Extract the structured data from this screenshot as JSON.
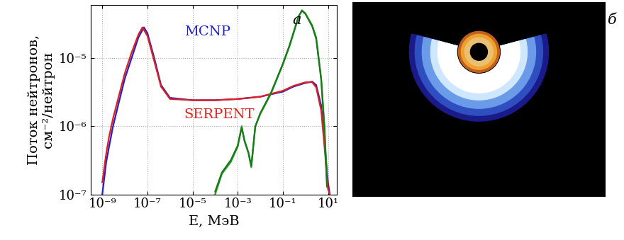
{
  "chart_data": {
    "type": "line",
    "panel_label": "а",
    "x_label": "E, МэВ",
    "y_label": "Поток нейтронов,\nсм⁻²/нейтрон",
    "log": true,
    "grid": true,
    "xlim": [
      3e-10,
      25
    ],
    "ylim": [
      1e-07,
      6e-05
    ],
    "xticks": [
      {
        "value": 1e-09,
        "label": "10⁻⁹"
      },
      {
        "value": 1e-07,
        "label": "10⁻⁷"
      },
      {
        "value": 1e-05,
        "label": "10⁻⁵"
      },
      {
        "value": 0.001,
        "label": "10⁻³"
      },
      {
        "value": 0.1,
        "label": "10⁻¹"
      },
      {
        "value": 10,
        "label": "10¹"
      }
    ],
    "yticks": [
      {
        "value": 1e-07,
        "label": "10⁻⁷"
      },
      {
        "value": 1e-06,
        "label": "10⁻⁶"
      },
      {
        "value": 1e-05,
        "label": "10⁻⁵"
      }
    ],
    "series": [
      {
        "name": "MCNP",
        "color": "#1f1fd0",
        "x": [
          1e-09,
          1.5e-09,
          2e-09,
          3e-09,
          5e-09,
          1e-08,
          2e-08,
          4e-08,
          7e-08,
          1e-07,
          2e-07,
          4e-07,
          1e-06,
          1e-05,
          0.0001,
          0.001,
          0.01,
          0.1,
          0.3,
          1,
          2,
          3,
          5,
          7,
          10,
          12
        ],
        "values": [
          1e-07,
          3e-07,
          5e-07,
          1e-06,
          2e-06,
          5e-06,
          1e-05,
          2e-05,
          2.8e-05,
          2.3e-05,
          1e-05,
          4e-06,
          2.6e-06,
          2.4e-06,
          2.4e-06,
          2.5e-06,
          2.7e-06,
          3.2e-06,
          3.8e-06,
          4.3e-06,
          4.5e-06,
          4e-06,
          2e-06,
          6e-07,
          1.5e-07,
          1e-07
        ]
      },
      {
        "name": "SERPENT",
        "color": "#e02020",
        "x": [
          1e-09,
          1.5e-09,
          2e-09,
          3e-09,
          5e-09,
          1e-08,
          2e-08,
          4e-08,
          6e-08,
          1e-07,
          2e-07,
          4e-07,
          1e-06,
          1e-05,
          0.0001,
          0.001,
          0.01,
          0.1,
          0.3,
          1,
          2,
          3,
          5,
          7,
          10,
          12
        ],
        "values": [
          1.5e-07,
          4e-07,
          7e-07,
          1.3e-06,
          2.5e-06,
          6e-06,
          1.2e-05,
          2.2e-05,
          2.8e-05,
          2.1e-05,
          9e-06,
          3.8e-06,
          2.5e-06,
          2.4e-06,
          2.4e-06,
          2.5e-06,
          2.7e-06,
          3.3e-06,
          3.9e-06,
          4.4e-06,
          4.4e-06,
          3.7e-06,
          1.7e-06,
          5e-07,
          1.2e-07,
          1e-07
        ]
      },
      {
        "color": "#2ca02c",
        "x": [
          0.0001,
          0.0002,
          0.0005,
          0.001,
          0.0015,
          0.002,
          0.003,
          0.004,
          0.006,
          0.01,
          0.03,
          0.1,
          0.2,
          0.5,
          0.7,
          1,
          2,
          3,
          5,
          7,
          9
        ],
        "values": [
          1e-07,
          2e-07,
          3e-07,
          5e-07,
          1e-06,
          6e-07,
          4e-07,
          2.5e-07,
          1e-06,
          1.5e-06,
          3e-06,
          8e-06,
          1.5e-05,
          4e-05,
          5e-05,
          4.5e-05,
          3e-05,
          2e-05,
          5e-06,
          1e-06,
          1.5e-07
        ]
      },
      {
        "color": "#1a7a1a",
        "x": [
          0.0001,
          0.0002,
          0.0005,
          0.001,
          0.0015,
          0.002,
          0.003,
          0.004,
          0.006,
          0.01,
          0.03,
          0.1,
          0.2,
          0.5,
          0.7,
          1,
          2,
          3,
          5,
          7,
          9
        ],
        "values": [
          1.1e-07,
          2.1e-07,
          3.2e-07,
          5.2e-07,
          9.5e-07,
          6.2e-07,
          4.1e-07,
          2.6e-07,
          9.8e-07,
          1.55e-06,
          3.1e-06,
          8.2e-06,
          1.55e-05,
          4.1e-05,
          4.9e-05,
          4.4e-05,
          2.9e-05,
          1.9e-05,
          4.8e-06,
          9e-07,
          1.3e-07
        ]
      }
    ]
  },
  "panel_b": {
    "panel_label": "б"
  }
}
